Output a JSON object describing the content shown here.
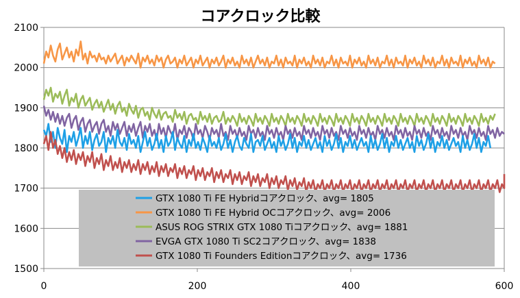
{
  "chart_data": {
    "type": "line",
    "title": "コアクロック比較",
    "xlabel": "",
    "ylabel": "",
    "xlim": [
      0,
      600
    ],
    "ylim": [
      1500,
      2100
    ],
    "xticks": [
      0,
      200,
      400,
      600
    ],
    "yticks": [
      1500,
      1600,
      1700,
      1800,
      1900,
      2000,
      2100
    ],
    "grid": "horizontal",
    "legend_position": "bottom",
    "sample_step": 3,
    "series": [
      {
        "name": "GTX 1080 Ti FE Hybridコアクロック、avg= 1805",
        "color": "#1ea0e6",
        "y": [
          1845,
          1830,
          1860,
          1815,
          1840,
          1800,
          1850,
          1825,
          1810,
          1845,
          1790,
          1830,
          1815,
          1840,
          1805,
          1825,
          1850,
          1800,
          1830,
          1810,
          1840,
          1795,
          1820,
          1835,
          1805,
          1815,
          1840,
          1790,
          1825,
          1810,
          1830,
          1800,
          1845,
          1815,
          1805,
          1825,
          1795,
          1835,
          1810,
          1820,
          1800,
          1830,
          1790,
          1815,
          1840,
          1805,
          1825,
          1795,
          1810,
          1835,
          1800,
          1820,
          1790,
          1830,
          1805,
          1815,
          1840,
          1795,
          1825,
          1810,
          1800,
          1830,
          1790,
          1820,
          1805,
          1835,
          1800,
          1815,
          1795,
          1825,
          1810,
          1790,
          1830,
          1805,
          1815,
          1800,
          1825,
          1795,
          1810,
          1835,
          1800,
          1820,
          1790,
          1815,
          1830,
          1805,
          1795,
          1825,
          1810,
          1800,
          1835,
          1790,
          1815,
          1820,
          1805,
          1830,
          1795,
          1810,
          1825,
          1800,
          1815,
          1790,
          1830,
          1805,
          1820,
          1795,
          1810,
          1835,
          1800,
          1825,
          1790,
          1815,
          1805,
          1830,
          1800,
          1820,
          1795,
          1810,
          1825,
          1800,
          1815,
          1790,
          1830,
          1805,
          1820,
          1795,
          1810,
          1835,
          1800,
          1825,
          1790,
          1815,
          1805,
          1830,
          1800,
          1820,
          1795,
          1810,
          1825,
          1805,
          1815,
          1790,
          1830,
          1800,
          1820,
          1795,
          1810,
          1835,
          1800,
          1825,
          1790,
          1815,
          1805,
          1830,
          1800,
          1820,
          1795,
          1810,
          1825,
          1800,
          1815,
          1790,
          1830,
          1805,
          1820,
          1795,
          1810,
          1835,
          1800,
          1825,
          1790,
          1815,
          1805,
          1830,
          1800,
          1820,
          1795,
          1810,
          1825,
          1805,
          1815,
          1790,
          1830,
          1800,
          1820,
          1795,
          1810,
          1835,
          1800,
          1825,
          1790,
          1815,
          1805,
          1830,
          1800
        ]
      },
      {
        "name": "GTX 1080 Ti FE Hybrid OCコアクロック、avg= 2006",
        "color": "#f79646",
        "y": [
          2010,
          2040,
          2025,
          2055,
          2030,
          2015,
          2045,
          2060,
          2020,
          2035,
          2050,
          2025,
          2040,
          2015,
          2045,
          2030,
          2065,
          2020,
          2035,
          2010,
          2040,
          2025,
          2030,
          2015,
          2035,
          2020,
          2025,
          2010,
          2030,
          2015,
          2025,
          2035,
          2010,
          2020,
          2030,
          2005,
          2025,
          2015,
          2030,
          2020,
          2010,
          2035,
          2000,
          2025,
          2015,
          2030,
          2010,
          2020,
          2005,
          2030,
          2015,
          2025,
          2000,
          2020,
          2030,
          2010,
          2015,
          2025,
          2000,
          2020,
          2010,
          2030,
          2005,
          2015,
          2025,
          2000,
          2020,
          2010,
          2030,
          2005,
          2015,
          2025,
          2000,
          2020,
          2010,
          2025,
          2005,
          2015,
          2030,
          2000,
          2020,
          2010,
          2025,
          2005,
          2015,
          2000,
          2030,
          2010,
          2020,
          2005,
          2025,
          2000,
          2015,
          2030,
          2010,
          2020,
          2005,
          2025,
          2000,
          2015,
          2010,
          2030,
          2005,
          2020,
          2000,
          2025,
          2010,
          2015,
          2005,
          2030,
          2000,
          2020,
          2010,
          2025,
          2005,
          2015,
          2000,
          2030,
          2010,
          2020,
          2005,
          2025,
          2000,
          2015,
          2010,
          2030,
          2005,
          2020,
          2000,
          2025,
          2010,
          2015,
          2005,
          2030,
          2000,
          2020,
          2010,
          2025,
          2005,
          2015,
          2000,
          2030,
          2010,
          2020,
          2005,
          2025,
          2000,
          2015,
          2010,
          2030,
          2005,
          2020,
          2000,
          2025,
          2010,
          2015,
          2005,
          2030,
          2000,
          2020,
          2010,
          2025,
          2005,
          2015,
          2000,
          2030,
          2010,
          2020,
          2005,
          2025,
          2000,
          2015,
          2010,
          2030,
          2005,
          2020,
          2000,
          2025,
          2010,
          2015,
          2005,
          2030,
          2000,
          2020,
          2010,
          2025,
          2005,
          2015,
          2000,
          2030,
          2010,
          2020,
          2005,
          2025,
          2000,
          2015,
          2010
        ]
      },
      {
        "name": "ASUS ROG STRIX GTX 1080 Tiコアクロック、avg= 1881",
        "color": "#9bbb59",
        "y": [
          1920,
          1945,
          1930,
          1950,
          1915,
          1935,
          1925,
          1940,
          1910,
          1930,
          1945,
          1905,
          1925,
          1915,
          1935,
          1900,
          1920,
          1930,
          1905,
          1915,
          1925,
          1895,
          1910,
          1920,
          1900,
          1915,
          1890,
          1905,
          1920,
          1895,
          1910,
          1885,
          1905,
          1915,
          1890,
          1900,
          1880,
          1910,
          1895,
          1885,
          1905,
          1875,
          1895,
          1900,
          1880,
          1890,
          1870,
          1900,
          1885,
          1875,
          1895,
          1870,
          1885,
          1890,
          1875,
          1880,
          1865,
          1895,
          1875,
          1885,
          1870,
          1890,
          1860,
          1880,
          1885,
          1870,
          1875,
          1860,
          1890,
          1870,
          1880,
          1865,
          1885,
          1860,
          1875,
          1880,
          1865,
          1870,
          1890,
          1860,
          1875,
          1865,
          1880,
          1870,
          1855,
          1885,
          1865,
          1875,
          1860,
          1880,
          1870,
          1855,
          1885,
          1865,
          1875,
          1860,
          1880,
          1870,
          1855,
          1885,
          1865,
          1875,
          1860,
          1880,
          1870,
          1855,
          1885,
          1865,
          1875,
          1860,
          1880,
          1870,
          1855,
          1885,
          1865,
          1875,
          1860,
          1880,
          1870,
          1855,
          1885,
          1865,
          1875,
          1860,
          1880,
          1870,
          1855,
          1885,
          1865,
          1875,
          1860,
          1880,
          1870,
          1855,
          1885,
          1865,
          1875,
          1860,
          1880,
          1870,
          1855,
          1885,
          1865,
          1875,
          1860,
          1880,
          1870,
          1855,
          1885,
          1865,
          1875,
          1860,
          1880,
          1870,
          1855,
          1885,
          1865,
          1875,
          1860,
          1880,
          1870,
          1855,
          1885,
          1865,
          1875,
          1860,
          1880,
          1870,
          1855,
          1885,
          1865,
          1875,
          1860,
          1880,
          1870,
          1855,
          1885,
          1865,
          1875,
          1860,
          1880,
          1870,
          1855,
          1885,
          1865,
          1875,
          1860,
          1880,
          1870,
          1855,
          1885,
          1865,
          1875,
          1860,
          1880,
          1870,
          1885
        ]
      },
      {
        "name": "EVGA GTX 1080 Ti SC2コアクロック、avg= 1838",
        "color": "#8064a2",
        "y": [
          1905,
          1880,
          1895,
          1870,
          1890,
          1865,
          1885,
          1860,
          1880,
          1855,
          1875,
          1885,
          1850,
          1870,
          1880,
          1845,
          1865,
          1875,
          1840,
          1860,
          1870,
          1840,
          1855,
          1865,
          1835,
          1860,
          1870,
          1840,
          1855,
          1830,
          1865,
          1845,
          1860,
          1835,
          1850,
          1865,
          1830,
          1855,
          1840,
          1860,
          1830,
          1850,
          1865,
          1825,
          1855,
          1840,
          1860,
          1830,
          1845,
          1820,
          1860,
          1835,
          1850,
          1825,
          1855,
          1840,
          1830,
          1860,
          1820,
          1845,
          1835,
          1855,
          1825,
          1850,
          1840,
          1820,
          1860,
          1835,
          1845,
          1825,
          1855,
          1840,
          1820,
          1850,
          1835,
          1845,
          1825,
          1860,
          1830,
          1840,
          1820,
          1855,
          1835,
          1845,
          1825,
          1850,
          1830,
          1840,
          1820,
          1855,
          1835,
          1845,
          1825,
          1850,
          1830,
          1840,
          1820,
          1855,
          1835,
          1845,
          1825,
          1850,
          1830,
          1840,
          1820,
          1855,
          1835,
          1845,
          1825,
          1850,
          1830,
          1840,
          1820,
          1855,
          1835,
          1845,
          1825,
          1850,
          1830,
          1840,
          1820,
          1855,
          1835,
          1845,
          1825,
          1850,
          1830,
          1840,
          1820,
          1855,
          1835,
          1845,
          1825,
          1850,
          1830,
          1840,
          1820,
          1855,
          1835,
          1845,
          1825,
          1850,
          1830,
          1840,
          1820,
          1855,
          1835,
          1845,
          1825,
          1850,
          1830,
          1840,
          1820,
          1855,
          1835,
          1845,
          1825,
          1850,
          1830,
          1840,
          1820,
          1855,
          1835,
          1845,
          1825,
          1850,
          1830,
          1840,
          1820,
          1855,
          1835,
          1845,
          1825,
          1850,
          1830,
          1840,
          1820,
          1855,
          1835,
          1845,
          1825,
          1850,
          1830,
          1840,
          1820,
          1855,
          1835,
          1845,
          1825,
          1850,
          1830,
          1840,
          1820,
          1855,
          1835,
          1845,
          1825,
          1850,
          1830,
          1840,
          1835
        ]
      },
      {
        "name": "GTX 1080 Ti Founders Editionコアクロック、avg= 1736",
        "color": "#c0504d",
        "y": [
          1810,
          1830,
          1795,
          1840,
          1800,
          1820,
          1785,
          1805,
          1775,
          1800,
          1765,
          1790,
          1770,
          1795,
          1760,
          1785,
          1770,
          1790,
          1755,
          1780,
          1765,
          1790,
          1750,
          1775,
          1760,
          1785,
          1745,
          1770,
          1755,
          1780,
          1745,
          1765,
          1750,
          1775,
          1740,
          1765,
          1750,
          1770,
          1740,
          1760,
          1745,
          1770,
          1735,
          1760,
          1745,
          1765,
          1735,
          1755,
          1740,
          1765,
          1730,
          1755,
          1740,
          1760,
          1730,
          1750,
          1740,
          1760,
          1725,
          1750,
          1735,
          1755,
          1725,
          1745,
          1735,
          1755,
          1720,
          1745,
          1730,
          1750,
          1720,
          1740,
          1730,
          1750,
          1715,
          1740,
          1725,
          1745,
          1715,
          1735,
          1725,
          1745,
          1710,
          1735,
          1720,
          1740,
          1710,
          1730,
          1720,
          1740,
          1705,
          1730,
          1715,
          1735,
          1705,
          1725,
          1715,
          1735,
          1700,
          1725,
          1710,
          1730,
          1700,
          1720,
          1710,
          1730,
          1695,
          1720,
          1705,
          1725,
          1695,
          1715,
          1705,
          1725,
          1690,
          1715,
          1700,
          1720,
          1690,
          1710,
          1700,
          1720,
          1690,
          1710,
          1700,
          1720,
          1690,
          1710,
          1700,
          1720,
          1690,
          1710,
          1700,
          1720,
          1690,
          1710,
          1700,
          1720,
          1690,
          1710,
          1700,
          1720,
          1690,
          1710,
          1700,
          1720,
          1690,
          1710,
          1700,
          1720,
          1690,
          1710,
          1700,
          1720,
          1690,
          1710,
          1700,
          1720,
          1690,
          1710,
          1700,
          1720,
          1690,
          1710,
          1700,
          1720,
          1690,
          1710,
          1700,
          1720,
          1690,
          1710,
          1700,
          1720,
          1690,
          1710,
          1700,
          1720,
          1690,
          1710,
          1700,
          1720,
          1690,
          1710,
          1700,
          1720,
          1690,
          1710,
          1700,
          1720,
          1690,
          1710,
          1700,
          1720,
          1690,
          1710,
          1700,
          1720,
          1690,
          1710,
          1700,
          1735
        ]
      }
    ]
  }
}
